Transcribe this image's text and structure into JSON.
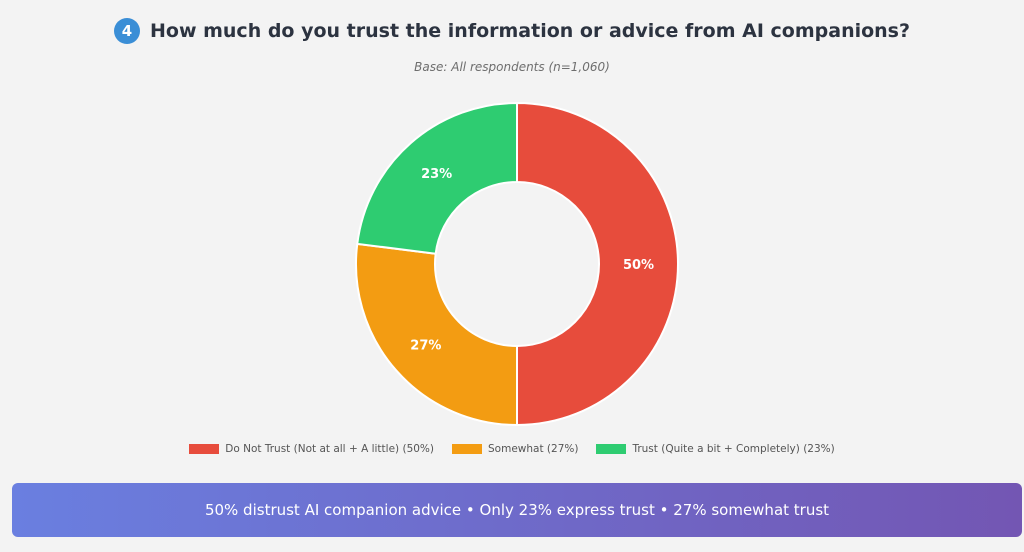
{
  "header": {
    "question_number": "4",
    "title": "How much do you trust the information or advice from AI companions?",
    "subtitle": "Base: All respondents (n=1,060)"
  },
  "chart_data": {
    "type": "pie",
    "donut": true,
    "title": "How much do you trust the information or advice from AI companions?",
    "subtitle": "Base: All respondents (n=1,060)",
    "slices": [
      {
        "label": "Do Not Trust (Not at all + A little) (50%)",
        "value": 50,
        "display": "50%",
        "color": "#e74c3c"
      },
      {
        "label": "Somewhat (27%)",
        "value": 27,
        "display": "27%",
        "color": "#f39c12"
      },
      {
        "label": "Trust (Quite a bit + Completely) (23%)",
        "value": 23,
        "display": "23%",
        "color": "#2ecc71"
      }
    ],
    "legend_position": "bottom"
  },
  "banner": {
    "text": "50% distrust AI companion advice • Only 23% express trust • 27% somewhat trust"
  },
  "colors": {
    "badge": "#3a8ed6",
    "title_text": "#2c3340",
    "banner_start": "#6a7fe0",
    "banner_end": "#7356b3"
  }
}
